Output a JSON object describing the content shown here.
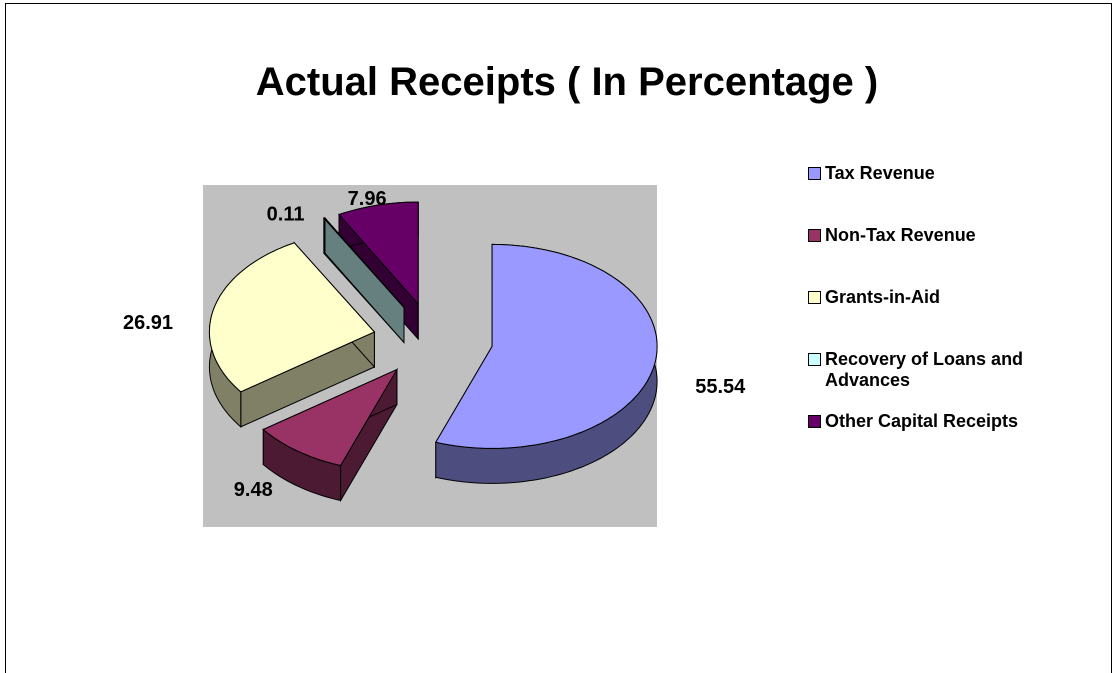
{
  "chart_data": {
    "type": "pie",
    "title": "Actual Receipts  ( In Percentage )",
    "categories": [
      "Tax Revenue",
      "Non-Tax Revenue",
      "Grants-in-Aid",
      "Recovery of Loans and Advances",
      "Other Capital Receipts"
    ],
    "values": [
      55.54,
      9.48,
      26.91,
      0.11,
      7.96
    ],
    "colors": [
      "#9999ff",
      "#993366",
      "#ffffcc",
      "#ccffff",
      "#660066"
    ],
    "legend": "right"
  }
}
